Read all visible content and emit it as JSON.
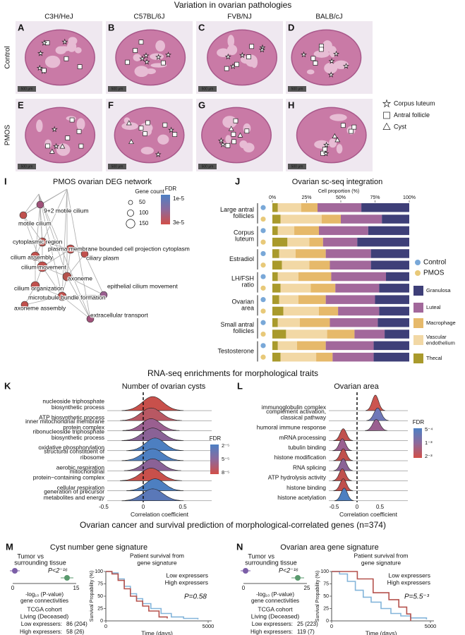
{
  "figure_title": "Variation in ovarian pathologies",
  "histology": {
    "letters": [
      "A",
      "B",
      "C",
      "D",
      "E",
      "F",
      "G",
      "H"
    ],
    "strains": [
      "C3H/HeJ",
      "C57BL/6J",
      "FVB/NJ",
      "BALB/cJ"
    ],
    "rows": [
      "Control",
      "PMOS"
    ],
    "scale_bar": "500 μm",
    "legend": [
      "Corpus luteum",
      "Antral follicle",
      "Cyst"
    ]
  },
  "network": {
    "letter": "I",
    "title": "PMOS ovarian DEG network",
    "size_title": "Gene count",
    "sizes": [
      50,
      100,
      150
    ],
    "fdr_title": "FDR",
    "fdr_labels": [
      "1e-5",
      "3e-5"
    ],
    "nodes": [
      "9+2 motile cilium",
      "motile cilium",
      "cytoplasmic region",
      "plasma membrane bounded cell projection cytoplasm",
      "cilium assembly",
      "ciliary plasm",
      "cilium movement",
      "axoneme",
      "cilium organization",
      "epithelial cilium movement",
      "microtubule bundle formation",
      "axoneme assembly",
      "extracellular transport"
    ]
  },
  "enrichment_title": "RNA-seq enrichments for morphological traits",
  "cysts": {
    "letter": "K",
    "title": "Number of ovarian cysts",
    "terms": [
      [
        "nucleoside triphosphate",
        "biosynthetic process"
      ],
      [
        "ATP biosynthetic process"
      ],
      [
        "inner mitochondrial membrane",
        "protein complex"
      ],
      [
        "ribonucleoside triphosphate",
        "biosynthetic process"
      ],
      [
        "oxidative phosphorylation"
      ],
      [
        "structural constituent of",
        "ribosome"
      ],
      [
        "aerobic respiration"
      ],
      [
        "mitochondrial",
        "protein−containing complex"
      ],
      [
        "cellular respiration"
      ],
      [
        "generation of precursor",
        "metabolites and energy"
      ]
    ],
    "ticks": [
      -0.5,
      0,
      0.5
    ],
    "x_label": "Correlation coefficient",
    "fdr_title": "FDR",
    "fdr_labels": [
      "2⁻⁵",
      "5⁻⁵",
      "8⁻⁵"
    ]
  },
  "area": {
    "letter": "L",
    "title": "Ovarian area",
    "terms": [
      [
        "immunoglobulin complex"
      ],
      [
        "complement activation,",
        "classical pathway"
      ],
      [
        "humoral immune response"
      ],
      [
        "mRNA processing"
      ],
      [
        "tubulin binding"
      ],
      [
        "histone modification"
      ],
      [
        "RNA splicing"
      ],
      [
        "ATP hydrolysis activity"
      ],
      [
        "histone binding"
      ],
      [
        "histone acetylation"
      ]
    ],
    "ticks": [
      -0.5,
      0,
      0.5
    ],
    "x_label": "Correlation coefficient",
    "fdr_title": "FDR",
    "fdr_labels": [
      "5⁻⁴",
      "1⁻³",
      "2⁻³"
    ]
  },
  "survival_title": "Ovarian cancer and survival prediction of morphological-correlated genes (n=374)",
  "signatures": [
    {
      "letter": "M",
      "title": "Cyst number gene signature",
      "tumor": "Tumor",
      "vs": "vs",
      "tissue": "surrounding tissue",
      "p": "P<2⁻¹⁶",
      "axis_ticks": [
        0,
        15
      ],
      "axis_label": [
        "-log₁₀ (P-value)",
        "gene connectivities"
      ],
      "cohort": "TCGA cohort",
      "status": "Living (Deceased)",
      "groups": [
        {
          "name": "Low expressers:",
          "counts": "86 (204)"
        },
        {
          "name": "High expressers:",
          "counts": "58 (26)"
        }
      ]
    },
    {
      "letter": "N",
      "title": "Ovarian area gene signature",
      "tumor": "Tumor",
      "vs": "vs",
      "tissue": "surrounding tissue",
      "p": "P<2⁻¹⁶",
      "axis_ticks": [
        0,
        25
      ],
      "axis_label": [
        "-log₁₀ (P-value)",
        "gene connectivities"
      ],
      "cohort": "TCGA cohort",
      "status": "Living (Deceased)",
      "groups": [
        {
          "name": "Low expressers:",
          "counts": "25 (223)"
        },
        {
          "name": "High expressers:",
          "counts": "119 (7)"
        }
      ]
    }
  ],
  "chart_data": [
    {
      "type": "bar",
      "letter": "J",
      "title": "Ovarian sc-seq integration",
      "x_label": "Cell proportion (%)",
      "xlim": [
        0,
        100
      ],
      "xticks": [
        {
          "value": 0,
          "label": "0%"
        },
        {
          "value": 25,
          "label": "25%"
        },
        {
          "value": 50,
          "label": "50%"
        },
        {
          "value": 75,
          "label": "75%"
        },
        {
          "value": 100,
          "label": "100%"
        }
      ],
      "categories": [
        "Large antral follicles",
        null,
        "Corpus luteum",
        null,
        "Estradiol",
        null,
        "LH/FSH ratio",
        null,
        "Ovarian area",
        null,
        "Small antral follicles",
        null,
        "Testosterone",
        null
      ],
      "condition_legend": [
        {
          "name": "Control",
          "color": "#79a8d8"
        },
        {
          "name": "PMOS",
          "color": "#e8c979"
        }
      ],
      "series": [
        {
          "name": "Granulosa",
          "color": "#3e3f78",
          "values": [
            35,
            20,
            30,
            38,
            28,
            28,
            17,
            22,
            25,
            22,
            23,
            18,
            26,
            26
          ]
        },
        {
          "name": "Luteal",
          "color": "#a2689b",
          "values": [
            32,
            30,
            36,
            25,
            33,
            30,
            40,
            32,
            36,
            30,
            35,
            22,
            35,
            30
          ]
        },
        {
          "name": "Macrophage",
          "color": "#e6b96a",
          "values": [
            12,
            14,
            18,
            10,
            22,
            15,
            24,
            18,
            20,
            14,
            22,
            20,
            21,
            12
          ]
        },
        {
          "name": "Vascular endothelium",
          "color": "#f2d8a5",
          "values": [
            17,
            30,
            12,
            16,
            12,
            20,
            15,
            22,
            14,
            26,
            16,
            30,
            14,
            26
          ]
        },
        {
          "name": "Thecal",
          "color": "#a99a2c",
          "values": [
            4,
            6,
            4,
            11,
            5,
            7,
            4,
            6,
            5,
            8,
            4,
            10,
            4,
            6
          ]
        }
      ]
    },
    {
      "type": "line",
      "title": [
        "Patient survival from",
        "gene signature"
      ],
      "x_label": "Time (days)",
      "y_label": "Survival Propability (%)",
      "xlim": [
        0,
        5000
      ],
      "xticks": [
        0,
        5000
      ],
      "ylim": [
        0,
        100
      ],
      "yticks": [
        0,
        25,
        50,
        75,
        100
      ],
      "annotation": "P=0.58",
      "series": [
        {
          "name": "Low expressers",
          "color": "#84b5da",
          "x": [
            0,
            300,
            600,
            900,
            1200,
            1500,
            1800,
            2200,
            2700,
            3200,
            3800,
            4500
          ],
          "values": [
            100,
            97,
            85,
            70,
            55,
            45,
            35,
            25,
            15,
            8,
            5,
            3
          ]
        },
        {
          "name": "High expressers",
          "color": "#b5524d",
          "x": [
            0,
            300,
            600,
            900,
            1200,
            1500,
            1800,
            2100,
            2600,
            3000
          ],
          "values": [
            100,
            95,
            82,
            65,
            50,
            40,
            30,
            20,
            8,
            5
          ]
        }
      ]
    },
    {
      "type": "line",
      "title": [
        "Patient survival from",
        "gene signature"
      ],
      "x_label": "Time (days)",
      "y_label": "Survival Propability (%)",
      "xlim": [
        0,
        5000
      ],
      "xticks": [
        0,
        5000
      ],
      "ylim": [
        0,
        100
      ],
      "yticks": [
        0,
        25,
        50,
        75,
        100
      ],
      "annotation": "P=5.5⁻³",
      "series": [
        {
          "name": "Low expressers",
          "color": "#84b5da",
          "x": [
            0,
            400,
            800,
            1200,
            1600,
            2000,
            2500,
            3000,
            3500,
            4000,
            4800
          ],
          "values": [
            100,
            95,
            80,
            62,
            48,
            38,
            25,
            15,
            10,
            6,
            3
          ]
        },
        {
          "name": "High expressers",
          "color": "#b5524d",
          "x": [
            0,
            1300,
            2100,
            2900,
            3400,
            3800,
            4000
          ],
          "values": [
            100,
            85,
            57,
            43,
            28,
            14,
            0
          ]
        }
      ]
    }
  ]
}
